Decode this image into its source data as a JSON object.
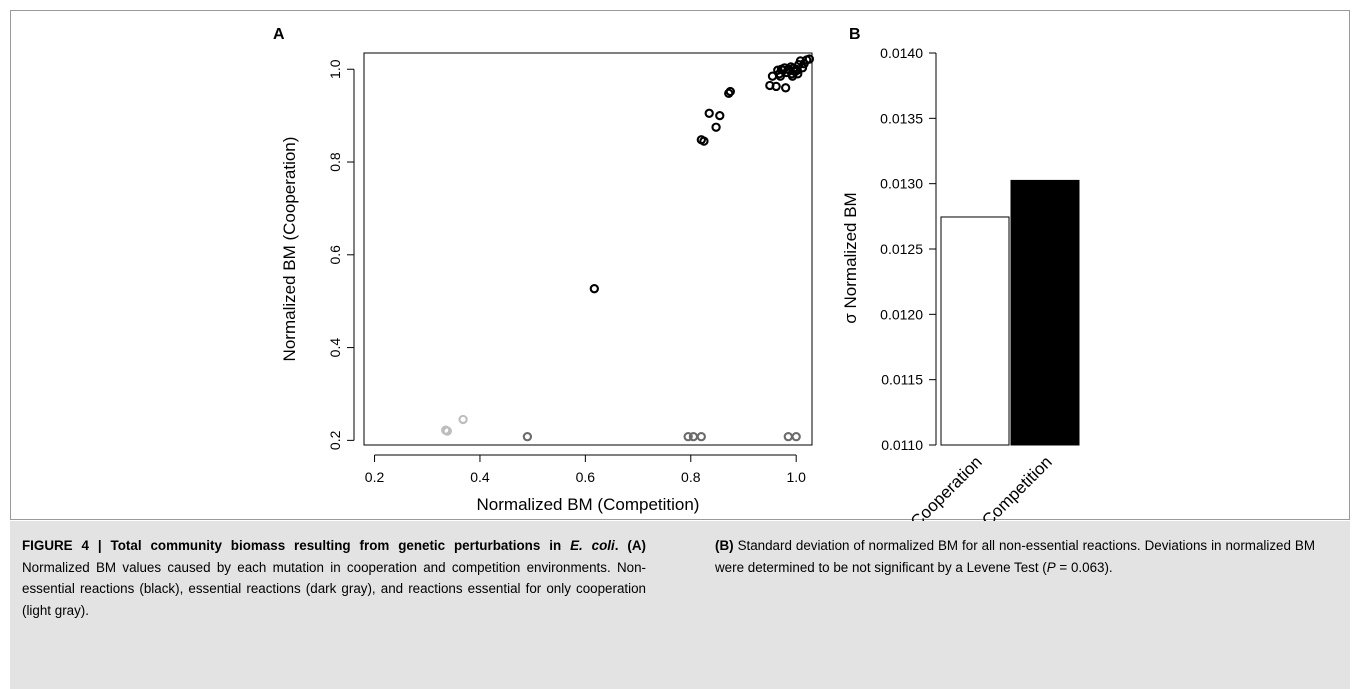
{
  "chart_data": [
    {
      "type": "scatter",
      "panel_label": "A",
      "xlabel": "Normalized BM (Competition)",
      "ylabel": "Normalized BM (Cooperation)",
      "xlim": [
        0.18,
        1.03
      ],
      "ylim": [
        0.19,
        1.035
      ],
      "xticks": [
        "0.2",
        "0.4",
        "0.6",
        "0.8",
        "1.0"
      ],
      "yticks": [
        "0.2",
        "0.4",
        "0.6",
        "0.8",
        "1.0"
      ],
      "grid": false,
      "series": [
        {
          "color": "#000000",
          "points": [
            [
              0.617,
              0.527
            ],
            [
              0.82,
              0.848
            ],
            [
              0.825,
              0.845
            ],
            [
              0.835,
              0.905
            ],
            [
              0.848,
              0.875
            ],
            [
              0.855,
              0.9
            ],
            [
              0.872,
              0.948
            ],
            [
              0.875,
              0.952
            ],
            [
              0.95,
              0.965
            ],
            [
              0.955,
              0.985
            ],
            [
              0.962,
              0.963
            ],
            [
              0.968,
              0.99
            ],
            [
              0.972,
              1.0
            ],
            [
              0.975,
              0.998
            ],
            [
              0.978,
              1.003
            ],
            [
              0.98,
              0.96
            ],
            [
              0.982,
              0.993
            ],
            [
              0.985,
              1.0
            ],
            [
              0.988,
              0.997
            ],
            [
              0.99,
              1.005
            ],
            [
              0.992,
              0.99
            ],
            [
              0.995,
              1.002
            ],
            [
              0.998,
              0.995
            ],
            [
              1.0,
              1.0
            ],
            [
              1.002,
              0.998
            ],
            [
              1.005,
              1.01
            ],
            [
              1.008,
              1.018
            ],
            [
              1.012,
              1.003
            ],
            [
              1.015,
              1.012
            ],
            [
              1.02,
              1.02
            ],
            [
              1.025,
              1.022
            ],
            [
              0.97,
              0.985
            ],
            [
              0.965,
              0.998
            ],
            [
              0.993,
              0.985
            ],
            [
              1.003,
              0.99
            ]
          ]
        },
        {
          "color": "#6b6b6b",
          "points": [
            [
              0.49,
              0.208
            ],
            [
              0.795,
              0.208
            ],
            [
              0.805,
              0.208
            ],
            [
              0.82,
              0.208
            ],
            [
              0.985,
              0.208
            ],
            [
              1.0,
              0.208
            ]
          ]
        },
        {
          "color": "#bdbdbd",
          "points": [
            [
              0.335,
              0.222
            ],
            [
              0.338,
              0.22
            ],
            [
              0.368,
              0.245
            ]
          ]
        }
      ]
    },
    {
      "type": "bar",
      "panel_label": "B",
      "ylabel": "σ Normalized BM",
      "ylim": [
        0.011,
        0.014
      ],
      "yticks": [
        "0.0110",
        "0.0115",
        "0.0120",
        "0.0125",
        "0.0130",
        "0.0135",
        "0.0140"
      ],
      "categories": [
        "Cooperation",
        "Competition"
      ],
      "values": [
        0.012745,
        0.013025
      ],
      "bar_colors": [
        "#ffffff",
        "#000000"
      ]
    }
  ],
  "caption": {
    "figure_label": "FIGURE 4 | Total community biomass resulting from genetic perturbations in",
    "organism": "E. coli",
    "period": ".",
    "part_a": "(A)",
    "text_a": "Normalized BM values caused by each mutation in cooperation and competition environments. Non-essential reactions (black), essential reactions (dark gray), and reactions essential for only cooperation (light gray).",
    "part_b": "(B)",
    "text_b1": "Standard deviation of normalized BM for all non-essential reactions. Deviations in normalized BM were determined to be not significant by a Levene Test (",
    "p_symbol": "P",
    "p_value": " = 0.063)."
  }
}
